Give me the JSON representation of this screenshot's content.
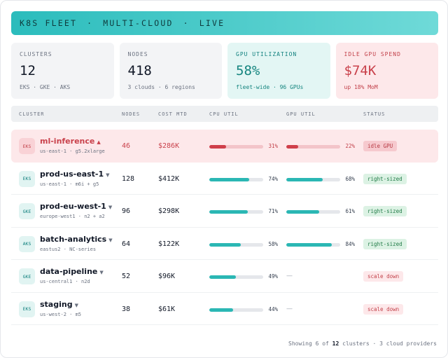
{
  "banner": {
    "parts": [
      "K8S FLEET",
      "MULTI-CLOUD",
      "LIVE"
    ],
    "separator": "·"
  },
  "kpis": [
    {
      "label": "CLUSTERS",
      "value": "12",
      "sub": "EKS · GKE · AKS",
      "tone": "neutral"
    },
    {
      "label": "NODES",
      "value": "418",
      "sub": "3 clouds · 6 regions",
      "tone": "neutral"
    },
    {
      "label": "GPU UTILIZATION",
      "value": "58%",
      "sub": "fleet-wide · 96 GPUs",
      "tone": "teal"
    },
    {
      "label": "IDLE GPU SPEND",
      "value": "$74K",
      "sub": "up 18% MoM",
      "tone": "red"
    }
  ],
  "table": {
    "columns": [
      "CLUSTER",
      "NODES",
      "COST MTD",
      "CPU UTIL",
      "GPU UTIL",
      "STATUS"
    ],
    "rows": [
      {
        "provider": "EKS",
        "name": "ml-inference",
        "caret": "▲",
        "meta": "us-east-1 · g5.2xlarge",
        "nodes": "46",
        "cost": "$286K",
        "cpu": 31,
        "cpu_label": "31%",
        "gpu": 22,
        "gpu_label": "22%",
        "status": "idle GPU",
        "status_kind": "idle",
        "alert": true
      },
      {
        "provider": "EKS",
        "name": "prod-us-east-1",
        "caret": "▼",
        "meta": "us-east-1 · m6i + g5",
        "nodes": "128",
        "cost": "$412K",
        "cpu": 74,
        "cpu_label": "74%",
        "gpu": 68,
        "gpu_label": "68%",
        "status": "right-sized",
        "status_kind": "good",
        "alert": false
      },
      {
        "provider": "GKE",
        "name": "prod-eu-west-1",
        "caret": "▼",
        "meta": "europe-west1 · n2 + a2",
        "nodes": "96",
        "cost": "$298K",
        "cpu": 71,
        "cpu_label": "71%",
        "gpu": 61,
        "gpu_label": "61%",
        "status": "right-sized",
        "status_kind": "good",
        "alert": false
      },
      {
        "provider": "AKS",
        "name": "batch-analytics",
        "caret": "▼",
        "meta": "eastus2 · NC-series",
        "nodes": "64",
        "cost": "$122K",
        "cpu": 58,
        "cpu_label": "58%",
        "gpu": 84,
        "gpu_label": "84%",
        "status": "right-sized",
        "status_kind": "good",
        "alert": false
      },
      {
        "provider": "GKE",
        "name": "data-pipeline",
        "caret": "▼",
        "meta": "us-central1 · n2d",
        "nodes": "52",
        "cost": "$96K",
        "cpu": 49,
        "cpu_label": "49%",
        "gpu": null,
        "gpu_label": "—",
        "status": "scale down",
        "status_kind": "warn",
        "alert": false
      },
      {
        "provider": "EKS",
        "name": "staging",
        "caret": "▼",
        "meta": "us-west-2 · m5",
        "nodes": "38",
        "cost": "$61K",
        "cpu": 44,
        "cpu_label": "44%",
        "gpu": null,
        "gpu_label": "—",
        "status": "scale down",
        "status_kind": "warn",
        "alert": false
      }
    ]
  },
  "footer": {
    "prefix": "Showing 6 of",
    "count": "12",
    "suffix": "clusters · 3 cloud providers"
  }
}
